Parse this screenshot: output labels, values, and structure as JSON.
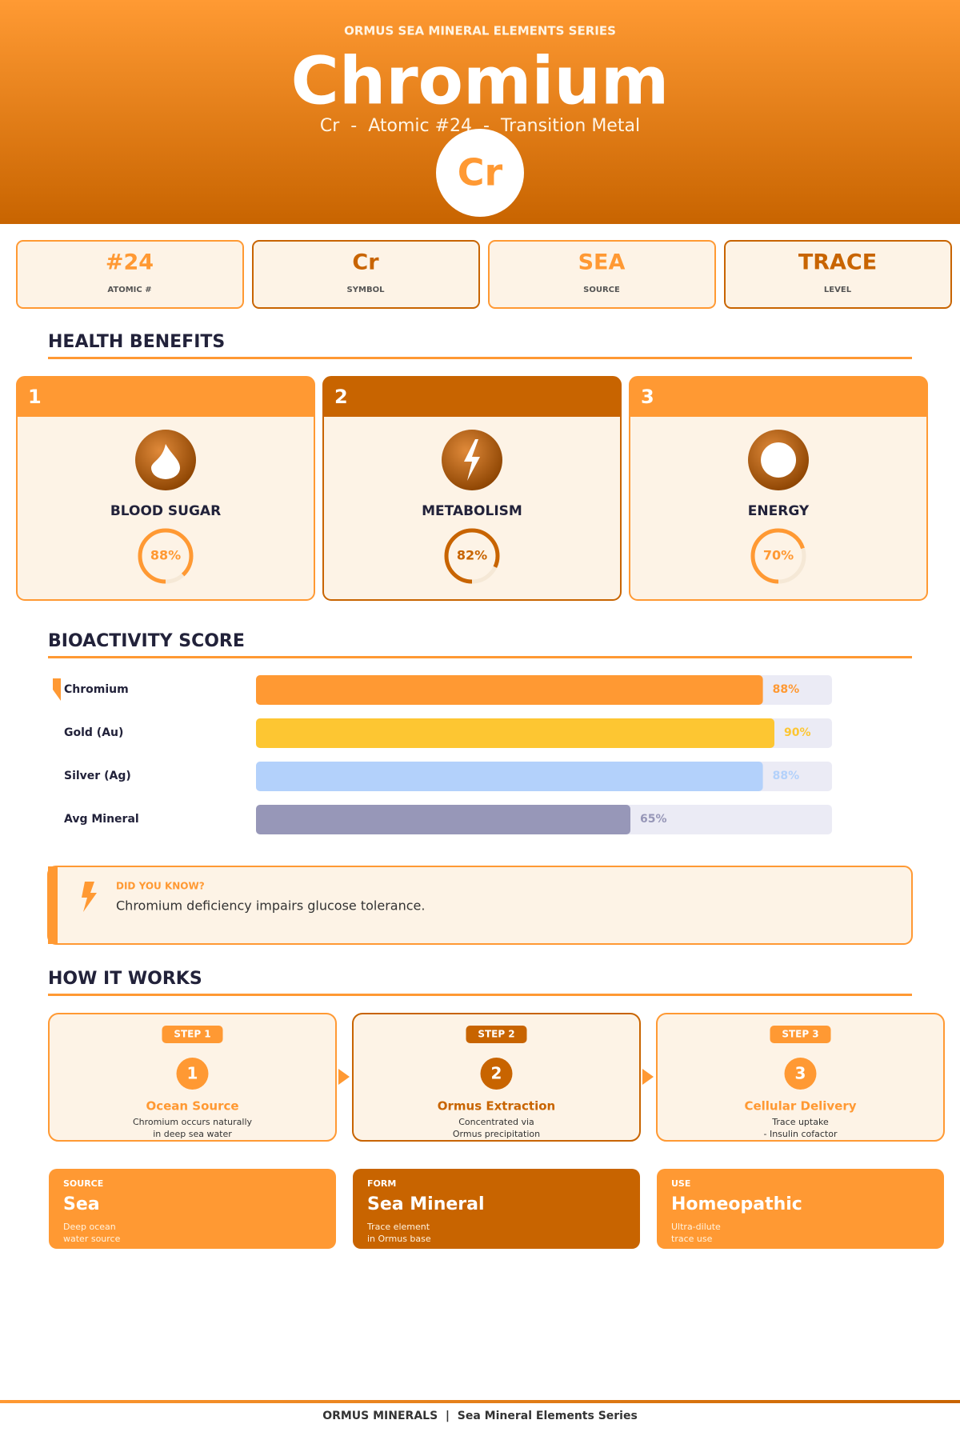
{
  "header": {
    "series": "ORMUS SEA MINERAL ELEMENTS SERIES",
    "title": "Chromium",
    "subtitle": "Cr  -  Atomic #24  -  Transition Metal",
    "badge": "Cr"
  },
  "stats": [
    {
      "value": "#24",
      "label": "ATOMIC #"
    },
    {
      "value": "Cr",
      "label": "SYMBOL"
    },
    {
      "value": "SEA",
      "label": "SOURCE"
    },
    {
      "value": "TRACE",
      "label": "LEVEL"
    }
  ],
  "benefits": {
    "title": "HEALTH BENEFITS",
    "range": [
      0,
      100
    ],
    "items": [
      {
        "number": 1,
        "name": "BLOOD SUGAR",
        "value": 88,
        "value_label": "88%"
      },
      {
        "number": 2,
        "name": "METABOLISM",
        "value": 82,
        "value_label": "82%"
      },
      {
        "number": 3,
        "name": "ENERGY",
        "value": 70,
        "value_label": "70%"
      }
    ]
  },
  "chart_data": {
    "type": "bar",
    "title": "BIOACTIVITY SCORE",
    "categories": [
      "Chromium",
      "Gold (Au)",
      "Silver (Ag)",
      "Avg Mineral"
    ],
    "values": [
      88,
      90,
      88,
      65
    ],
    "value_labels": [
      "88%",
      "90%",
      "88%",
      "65%"
    ],
    "colors": [
      "#ff9933",
      "#fdc632",
      "#b3d1fb",
      "#9797b8"
    ],
    "xlim": [
      0,
      100
    ]
  },
  "fact": {
    "title": "DID YOU KNOW?",
    "text": "Chromium deficiency impairs glucose tolerance."
  },
  "how": {
    "title": "HOW IT WORKS",
    "steps": [
      {
        "badge": "STEP 1",
        "number": 1,
        "title": "Ocean Source",
        "text": [
          "Chromium occurs naturally",
          "in deep sea water"
        ]
      },
      {
        "badge": "STEP 2",
        "number": 2,
        "title": "Ormus Extraction",
        "text": [
          "Concentrated via",
          "Ormus precipitation"
        ]
      },
      {
        "badge": "STEP 3",
        "number": 3,
        "title": "Cellular Delivery",
        "text": [
          "Trace uptake",
          "- Insulin cofactor"
        ]
      }
    ]
  },
  "cards": [
    {
      "label": "SOURCE",
      "value": "Sea",
      "text": [
        "Deep ocean",
        "water source"
      ]
    },
    {
      "label": "FORM",
      "value": "Sea Mineral",
      "text": [
        "Trace element",
        "in Ormus base"
      ]
    },
    {
      "label": "USE",
      "value": "Homeopathic",
      "text": [
        "Ultra-dilute",
        "trace use"
      ]
    }
  ],
  "footer": "ORMUS MINERALS  |  Sea Mineral Elements Series"
}
